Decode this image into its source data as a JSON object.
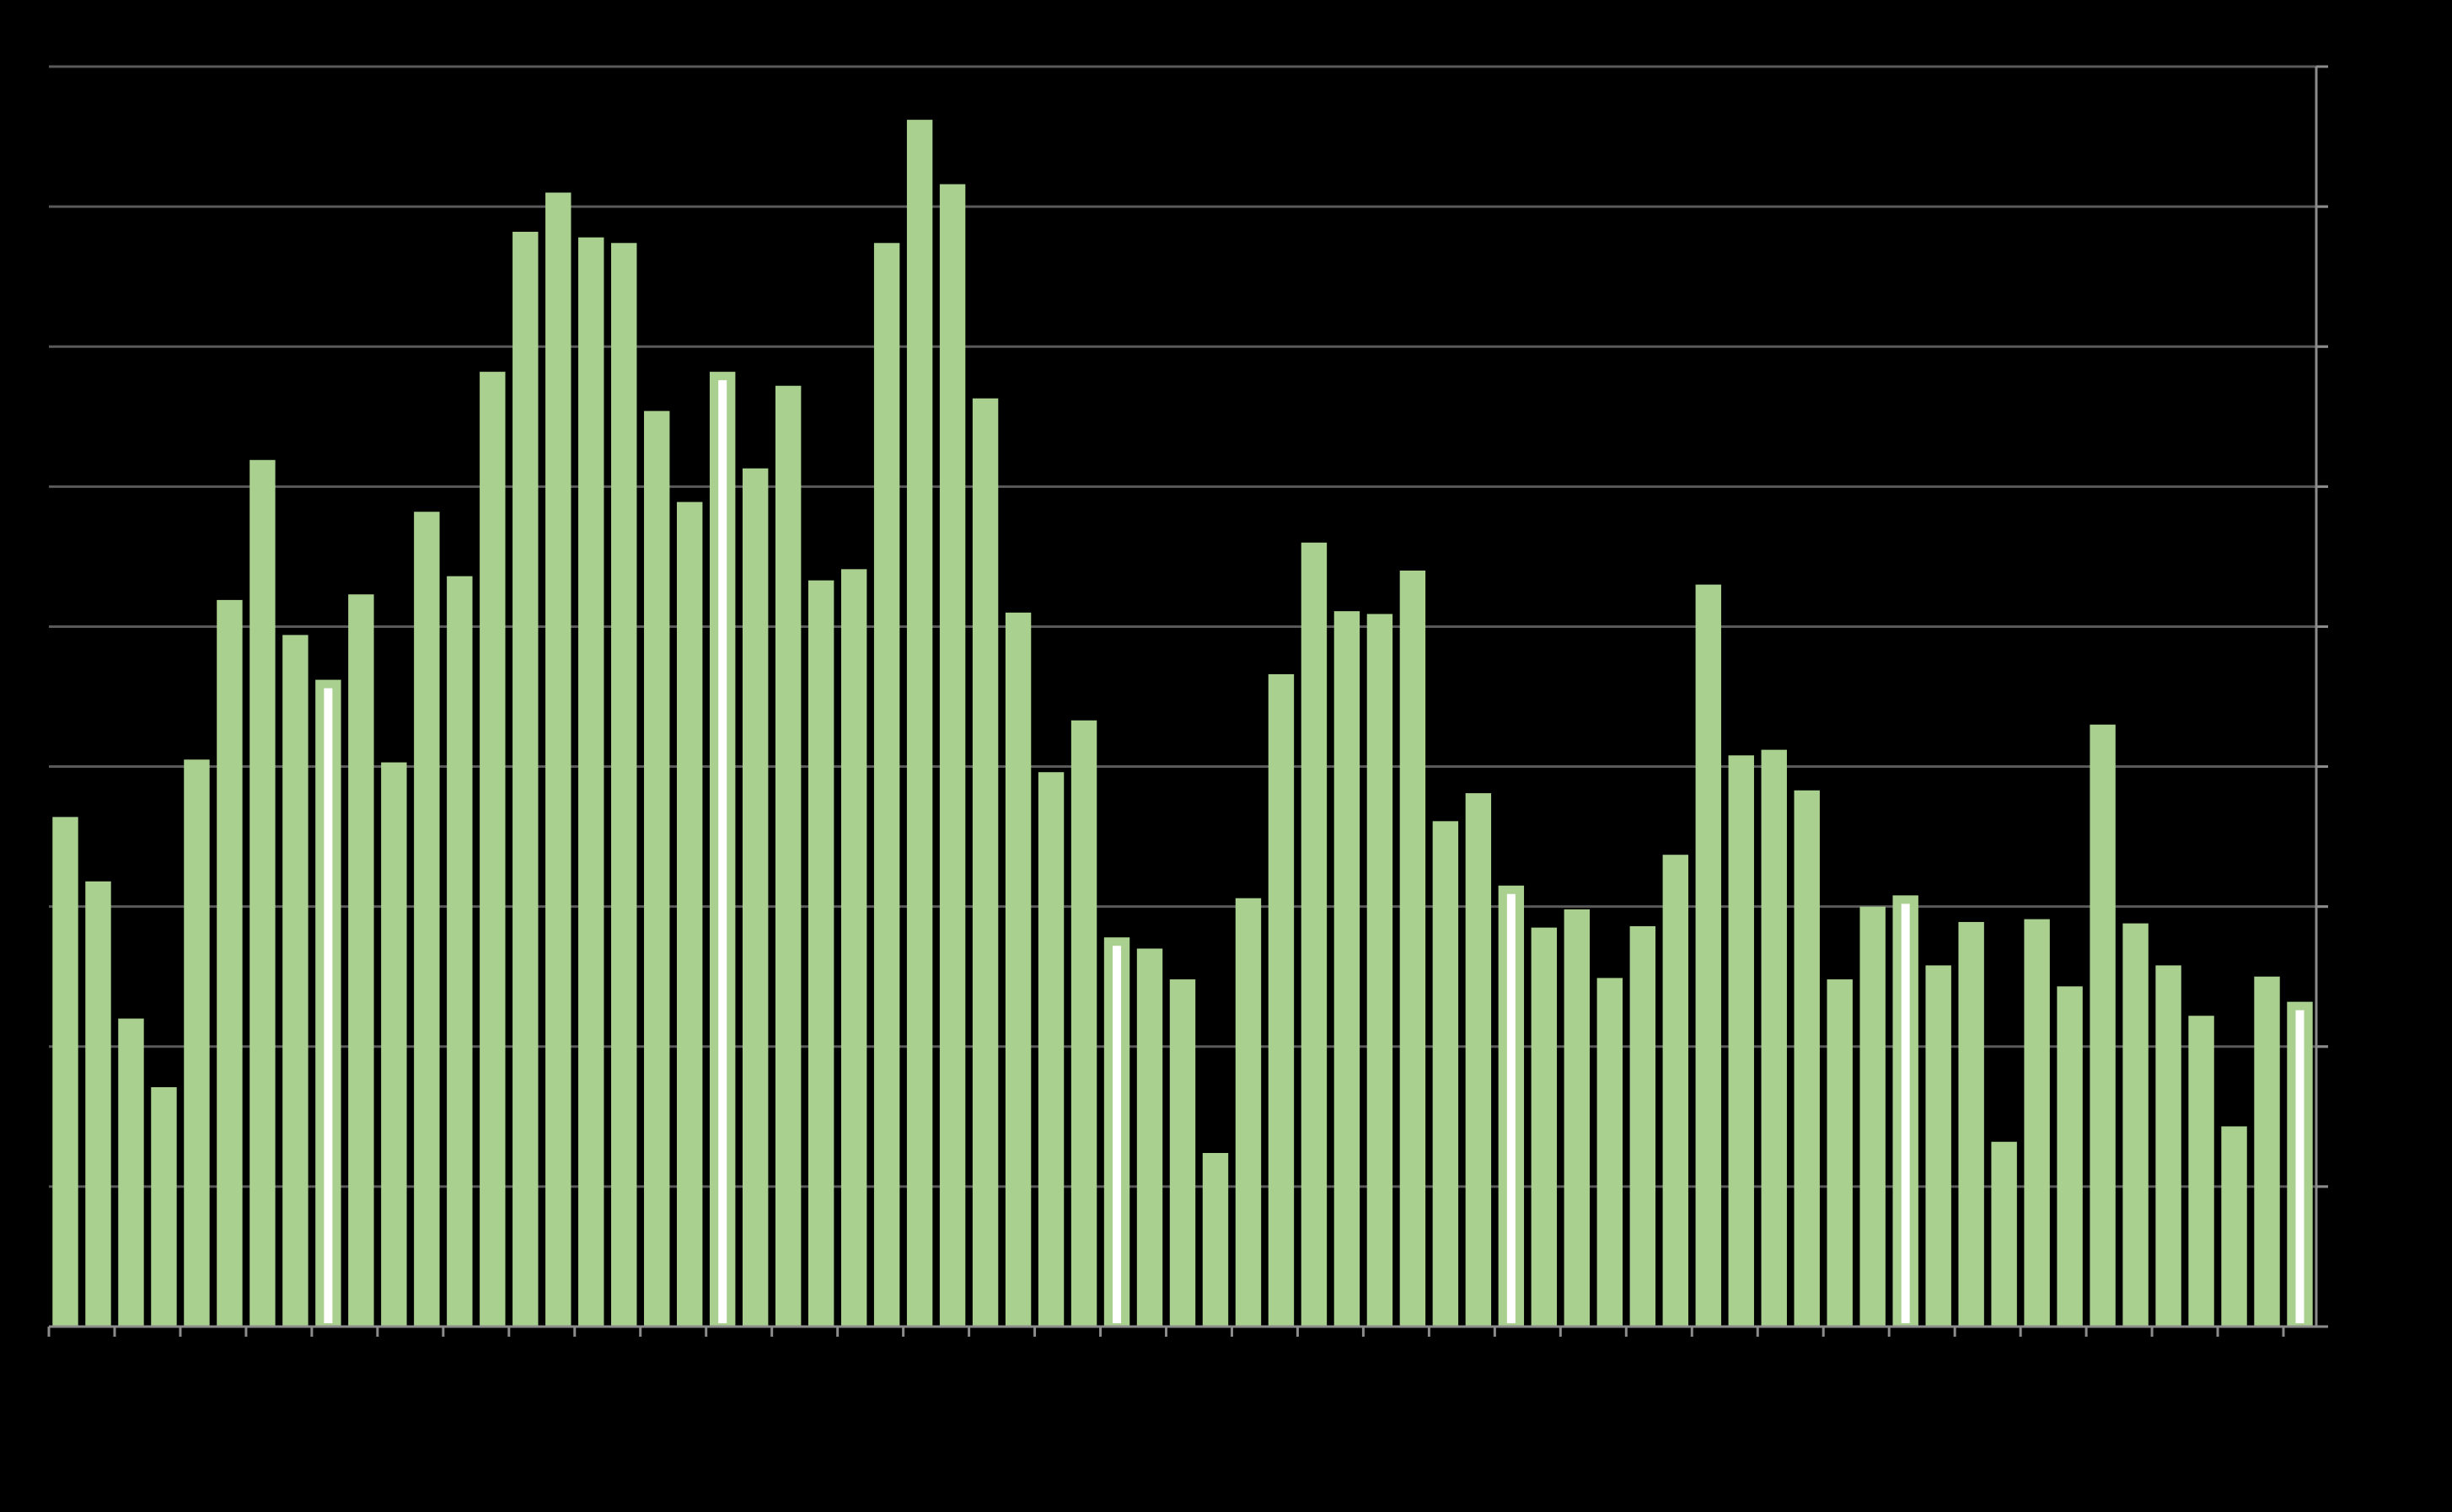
{
  "chart_data": {
    "type": "bar",
    "title": "",
    "xlabel": "",
    "ylabel": "",
    "grid": true,
    "ylim": [
      0,
      9
    ],
    "values": [
      3.64,
      3.18,
      2.2,
      1.71,
      4.05,
      5.19,
      6.19,
      4.94,
      4.62,
      5.23,
      4.03,
      5.82,
      5.36,
      6.82,
      7.82,
      8.1,
      7.78,
      7.74,
      6.54,
      5.89,
      6.82,
      6.13,
      6.72,
      5.33,
      5.41,
      7.74,
      8.62,
      8.16,
      6.63,
      5.1,
      3.96,
      4.33,
      2.78,
      2.7,
      2.48,
      1.24,
      3.06,
      4.66,
      5.6,
      5.11,
      5.09,
      5.4,
      3.61,
      3.81,
      3.15,
      2.85,
      2.98,
      2.49,
      2.86,
      3.37,
      5.3,
      4.08,
      4.12,
      3.83,
      2.48,
      3.0,
      3.08,
      2.58,
      2.89,
      1.32,
      2.91,
      2.43,
      4.3,
      2.88,
      2.58,
      2.22,
      1.43,
      2.5,
      2.32
    ],
    "highlighted_indices": [
      8,
      20,
      32,
      44,
      56,
      68
    ],
    "colors": {
      "bar": "#a9d08e",
      "highlight_bar": "#ffffff",
      "grid": "#595959",
      "axis": "#8c8c8c",
      "background": "#000000"
    }
  }
}
